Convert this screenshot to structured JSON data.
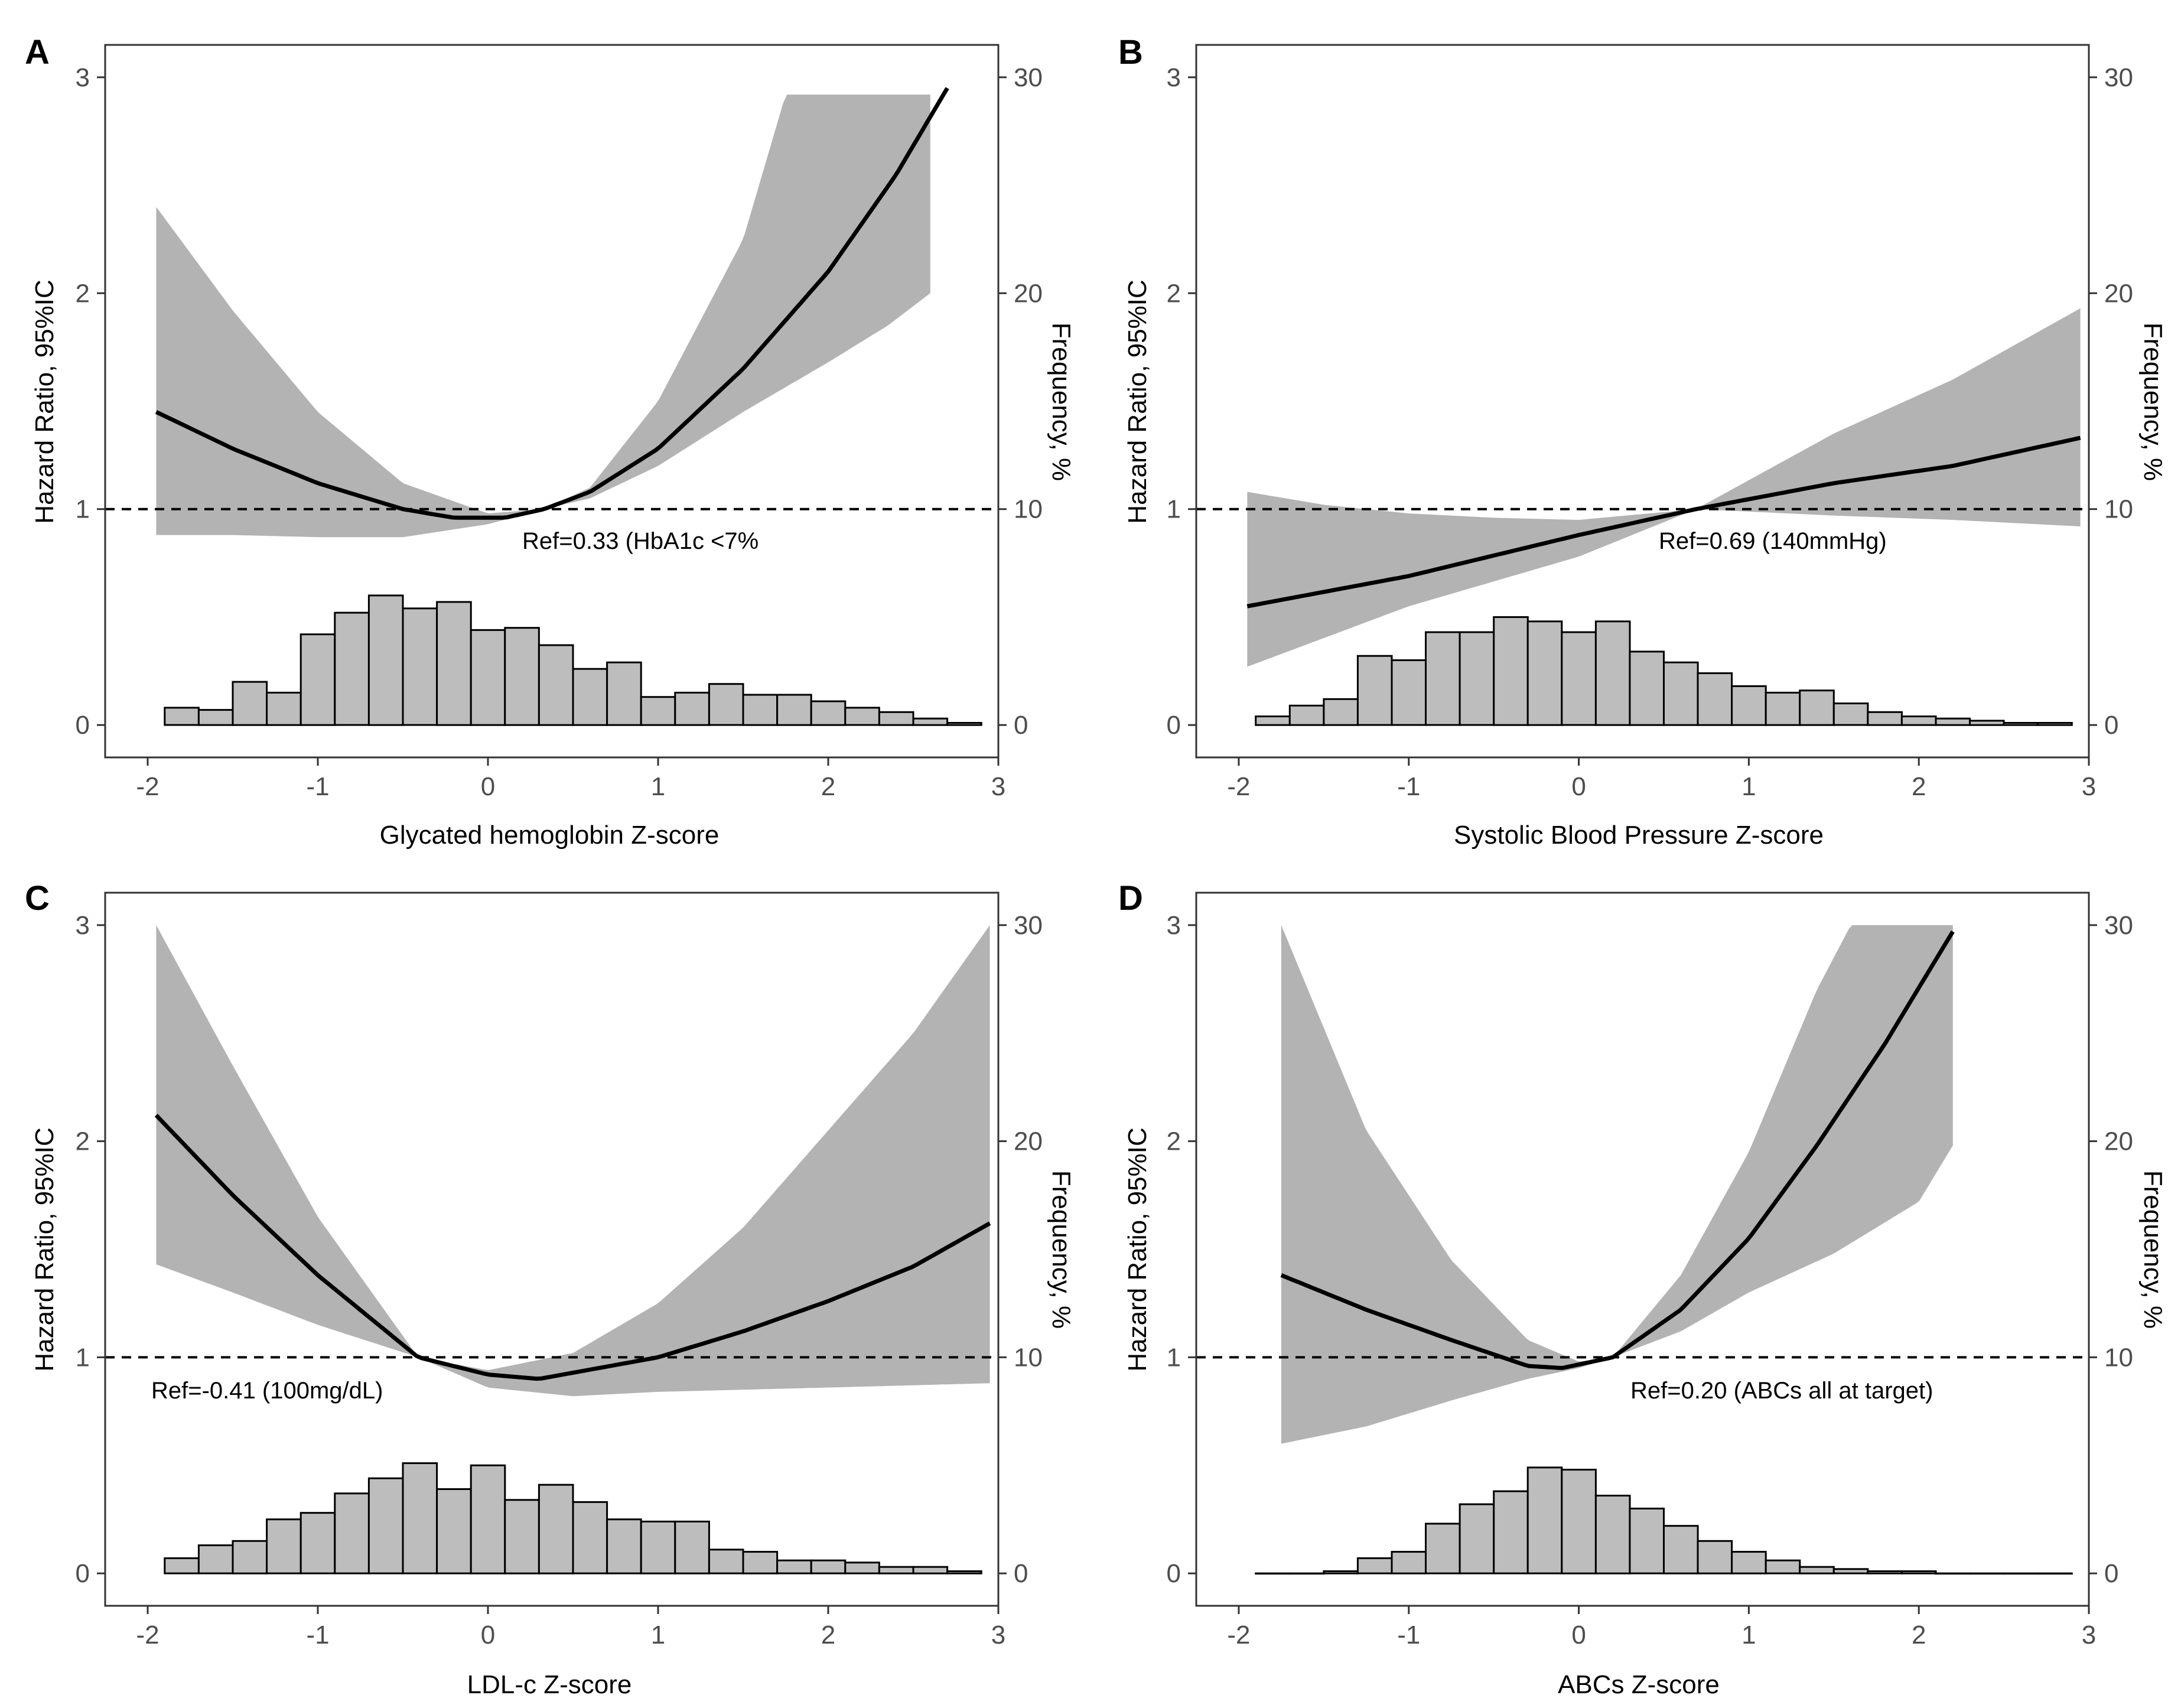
{
  "colors": {
    "band": "#b3b3b3",
    "bar_fill": "#bdbdbd",
    "line": "#000000",
    "axis": "#333333"
  },
  "chart_data": [
    {
      "panel": "A",
      "type": "line",
      "xlabel": "Glycated hemoglobin Z-score",
      "ylabel_left": "Hazard Ratio, 95%IC",
      "ylabel_right": "Frequency, %",
      "xlim": [
        -2.25,
        3.0
      ],
      "ylim": [
        -0.15,
        3.15
      ],
      "xticks": [
        -2,
        -1,
        0,
        1,
        2,
        3
      ],
      "yticks_left": [
        0,
        1,
        2,
        3
      ],
      "yticks_right": [
        0,
        10,
        20,
        30
      ],
      "reference_line": 1,
      "ref_label": "Ref=0.33 (HbA1c <7%",
      "hr_curve": {
        "x": [
          -1.95,
          -1.5,
          -1.0,
          -0.5,
          -0.2,
          0.1,
          0.33,
          0.6,
          1.0,
          1.5,
          2.0,
          2.4,
          2.7
        ],
        "y": [
          1.45,
          1.28,
          1.12,
          1.0,
          0.96,
          0.96,
          1.0,
          1.08,
          1.28,
          1.65,
          2.1,
          2.55,
          2.95
        ]
      },
      "ci_lower": {
        "x": [
          -1.95,
          -1.5,
          -1.0,
          -0.5,
          0.0,
          0.33,
          0.6,
          1.0,
          1.5,
          2.0,
          2.35,
          2.6
        ],
        "y": [
          0.88,
          0.88,
          0.87,
          0.87,
          0.93,
          1.0,
          1.05,
          1.2,
          1.45,
          1.68,
          1.85,
          2.0
        ]
      },
      "ci_upper": {
        "x": [
          -1.95,
          -1.5,
          -1.0,
          -0.5,
          0.0,
          0.33,
          0.6,
          1.0,
          1.5,
          1.75,
          2.0,
          2.6
        ],
        "y": [
          2.4,
          1.92,
          1.45,
          1.12,
          0.98,
          1.0,
          1.1,
          1.5,
          2.25,
          2.92,
          2.92,
          2.92
        ]
      },
      "histogram": {
        "bin_width": 0.2,
        "x_start": -1.9,
        "values": [
          0.8,
          0.7,
          2.0,
          1.5,
          4.2,
          5.2,
          6.0,
          5.4,
          5.7,
          4.4,
          4.5,
          3.7,
          2.6,
          2.9,
          1.3,
          1.5,
          1.9,
          1.4,
          1.4,
          1.1,
          0.8,
          0.6,
          0.3,
          0.1
        ]
      }
    },
    {
      "panel": "B",
      "type": "line",
      "xlabel": "Systolic Blood Pressure Z-score",
      "ylabel_left": "Hazard Ratio, 95%IC",
      "ylabel_right": "Frequency, %",
      "xlim": [
        -2.25,
        3.0
      ],
      "ylim": [
        -0.15,
        3.15
      ],
      "xticks": [
        -2,
        -1,
        0,
        1,
        2,
        3
      ],
      "yticks_left": [
        0,
        1,
        2,
        3
      ],
      "yticks_right": [
        0,
        10,
        20,
        30
      ],
      "reference_line": 1,
      "ref_label": "Ref=0.69 (140mmHg)",
      "hr_curve": {
        "x": [
          -1.95,
          -1.0,
          0.0,
          0.69,
          1.5,
          2.2,
          2.95
        ],
        "y": [
          0.55,
          0.69,
          0.88,
          1.0,
          1.12,
          1.2,
          1.33
        ]
      },
      "ci_lower": {
        "x": [
          -1.95,
          -1.0,
          0.0,
          0.69,
          1.5,
          2.2,
          2.95
        ],
        "y": [
          0.27,
          0.55,
          0.78,
          1.0,
          0.97,
          0.95,
          0.92
        ]
      },
      "ci_upper": {
        "x": [
          -1.95,
          -1.5,
          -1.0,
          -0.5,
          0.0,
          0.69,
          1.5,
          2.2,
          2.95
        ],
        "y": [
          1.08,
          1.02,
          0.98,
          0.96,
          0.95,
          1.0,
          1.35,
          1.6,
          1.93
        ]
      },
      "histogram": {
        "bin_width": 0.2,
        "x_start": -1.9,
        "values": [
          0.4,
          0.9,
          1.2,
          3.2,
          3.0,
          4.3,
          4.3,
          5.0,
          4.8,
          4.3,
          4.8,
          3.4,
          2.9,
          2.4,
          1.8,
          1.5,
          1.6,
          1.0,
          0.6,
          0.4,
          0.3,
          0.2,
          0.1,
          0.1
        ]
      }
    },
    {
      "panel": "C",
      "type": "line",
      "xlabel": "LDL-c Z-score",
      "ylabel_left": "Hazard Ratio, 95%IC",
      "ylabel_right": "Frequency, %",
      "xlim": [
        -2.25,
        3.0
      ],
      "ylim": [
        -0.15,
        3.15
      ],
      "xticks": [
        -2,
        -1,
        0,
        1,
        2,
        3
      ],
      "yticks_left": [
        0,
        1,
        2,
        3
      ],
      "yticks_right": [
        0,
        10,
        20,
        30
      ],
      "reference_line": 1,
      "ref_label": "Ref=-0.41 (100mg/dL)",
      "hr_curve": {
        "x": [
          -1.95,
          -1.5,
          -1.0,
          -0.41,
          0.0,
          0.3,
          1.0,
          1.5,
          2.0,
          2.5,
          2.95
        ],
        "y": [
          2.12,
          1.75,
          1.38,
          1.0,
          0.92,
          0.9,
          1.0,
          1.12,
          1.26,
          1.42,
          1.62
        ]
      },
      "ci_lower": {
        "x": [
          -1.95,
          -1.5,
          -1.0,
          -0.41,
          0.0,
          0.5,
          1.0,
          2.0,
          2.95
        ],
        "y": [
          1.43,
          1.3,
          1.15,
          1.0,
          0.86,
          0.82,
          0.84,
          0.86,
          0.88
        ]
      },
      "ci_upper": {
        "x": [
          -1.95,
          -1.5,
          -1.0,
          -0.41,
          0.0,
          0.5,
          1.0,
          1.5,
          2.0,
          2.5,
          2.95
        ],
        "y": [
          3.0,
          2.35,
          1.65,
          1.0,
          0.94,
          1.02,
          1.25,
          1.6,
          2.05,
          2.5,
          3.0
        ]
      },
      "histogram": {
        "bin_width": 0.2,
        "x_start": -1.9,
        "values": [
          0.7,
          1.3,
          1.5,
          2.5,
          2.8,
          3.7,
          4.4,
          5.1,
          3.9,
          5.0,
          3.4,
          4.1,
          3.3,
          2.5,
          2.4,
          2.4,
          1.1,
          1.0,
          0.6,
          0.6,
          0.5,
          0.3,
          0.3,
          0.1
        ]
      }
    },
    {
      "panel": "D",
      "type": "line",
      "xlabel": "ABCs Z-score",
      "ylabel_left": "Hazard Ratio, 95%IC",
      "ylabel_right": "Frequency, %",
      "xlim": [
        -2.25,
        3.0
      ],
      "ylim": [
        -0.15,
        3.15
      ],
      "xticks": [
        -2,
        -1,
        0,
        1,
        2,
        3
      ],
      "yticks_left": [
        0,
        1,
        2,
        3
      ],
      "yticks_right": [
        0,
        10,
        20,
        30
      ],
      "reference_line": 1,
      "ref_label": "Ref=0.20 (ABCs all at target)",
      "hr_curve": {
        "x": [
          -1.75,
          -1.25,
          -0.75,
          -0.3,
          -0.1,
          0.2,
          0.6,
          1.0,
          1.4,
          1.8,
          2.2
        ],
        "y": [
          1.38,
          1.22,
          1.08,
          0.96,
          0.95,
          1.0,
          1.22,
          1.55,
          1.98,
          2.45,
          2.97
        ]
      },
      "ci_lower": {
        "x": [
          -1.75,
          -1.25,
          -0.75,
          -0.3,
          0.0,
          0.2,
          0.6,
          1.0,
          1.5,
          2.0,
          2.2
        ],
        "y": [
          0.6,
          0.68,
          0.8,
          0.9,
          0.95,
          1.0,
          1.12,
          1.3,
          1.48,
          1.72,
          1.98
        ]
      },
      "ci_upper": {
        "x": [
          -1.75,
          -1.25,
          -0.75,
          -0.3,
          0.0,
          0.2,
          0.6,
          1.0,
          1.4,
          1.6,
          2.2
        ],
        "y": [
          3.0,
          2.05,
          1.45,
          1.08,
          0.98,
          1.0,
          1.38,
          1.95,
          2.7,
          3.0,
          3.0
        ]
      },
      "histogram": {
        "bin_width": 0.2,
        "x_start": -1.9,
        "values": [
          0.0,
          0.0,
          0.1,
          0.7,
          1.0,
          2.3,
          3.2,
          3.8,
          4.9,
          4.8,
          3.6,
          3.0,
          2.2,
          1.5,
          1.0,
          0.6,
          0.3,
          0.2,
          0.1,
          0.1,
          0.0,
          0.0,
          0.0,
          0.0
        ]
      }
    }
  ]
}
